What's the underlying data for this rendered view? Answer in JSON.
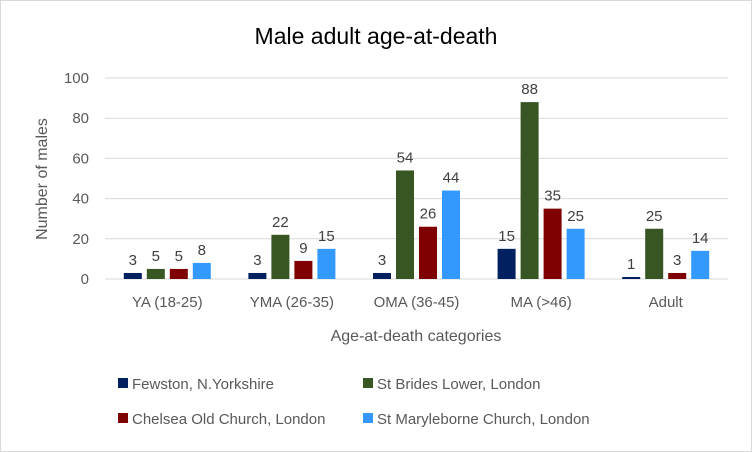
{
  "chart_data": {
    "type": "bar",
    "title": "Male adult age-at-death",
    "xlabel": "Age-at-death categories",
    "ylabel": "Number of males",
    "ylim": [
      0,
      100
    ],
    "yticks": [
      0,
      20,
      40,
      60,
      80,
      100
    ],
    "grid": true,
    "legend_position": "bottom",
    "categories": [
      "YA (18-25)",
      "YMA (26-35)",
      "OMA (36-45)",
      "MA (>46)",
      "Adult"
    ],
    "series": [
      {
        "name": "Fewston, N.Yorkshire",
        "color": "#002060",
        "values": [
          3,
          3,
          3,
          15,
          1
        ]
      },
      {
        "name": "St Brides Lower, London",
        "color": "#375623",
        "values": [
          5,
          22,
          54,
          88,
          25
        ]
      },
      {
        "name": "Chelsea Old Church, London",
        "color": "#7f0000",
        "values": [
          5,
          9,
          26,
          35,
          3
        ]
      },
      {
        "name": "St Maryleborne Church, London",
        "color": "#3399ff",
        "values": [
          8,
          15,
          44,
          25,
          14
        ]
      }
    ]
  }
}
